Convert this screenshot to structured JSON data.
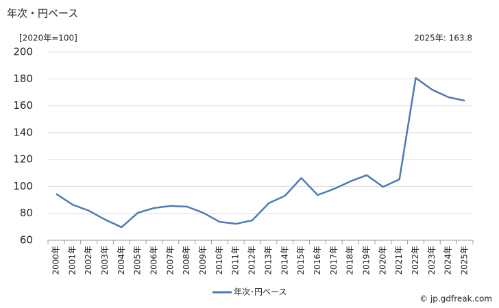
{
  "chart_data": {
    "type": "line",
    "title": "年次・円ベース",
    "unit_label": "[2020年=100]",
    "annotation": "2025年: 163.8",
    "source": "© jp.gdfreak.com",
    "categories": [
      "2000年",
      "2001年",
      "2002年",
      "2003年",
      "2004年",
      "2005年",
      "2006年",
      "2007年",
      "2008年",
      "2009年",
      "2010年",
      "2011年",
      "2012年",
      "2013年",
      "2014年",
      "2015年",
      "2016年",
      "2017年",
      "2018年",
      "2019年",
      "2020年",
      "2021年",
      "2022年",
      "2023年",
      "2024年",
      "2025年"
    ],
    "series": [
      {
        "name": "年次･円ベース",
        "color": "#4a7ab5",
        "values": [
          94.5,
          86.5,
          82,
          75.3,
          69.7,
          80.4,
          84,
          85.5,
          85,
          80.4,
          73.7,
          72.2,
          74.8,
          87.5,
          93.1,
          106.3,
          93.6,
          98.2,
          103.8,
          108.4,
          99.7,
          105.3,
          180.7,
          172,
          166.4,
          163.8
        ]
      }
    ],
    "ylim": [
      60,
      200
    ],
    "yticks": [
      60,
      80,
      100,
      120,
      140,
      160,
      180,
      200
    ],
    "grid": true
  }
}
